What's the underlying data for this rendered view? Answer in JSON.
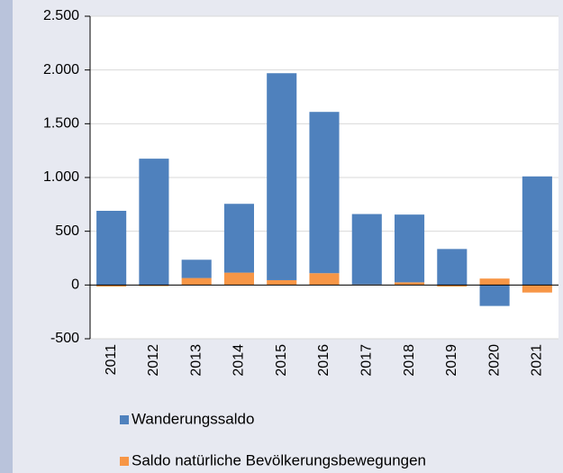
{
  "chart_data": {
    "type": "bar",
    "stacked": true,
    "categories": [
      "2011",
      "2012",
      "2013",
      "2014",
      "2015",
      "2016",
      "2017",
      "2018",
      "2019",
      "2020",
      "2021"
    ],
    "series": [
      {
        "name": "Saldo natürliche Bevölkerungsbewegungen",
        "color": "#f79646",
        "values": [
          -15,
          -10,
          65,
          115,
          45,
          110,
          5,
          25,
          -15,
          60,
          -70
        ]
      },
      {
        "name": "Wanderungssaldo",
        "color": "#4f81bd",
        "values": [
          690,
          1175,
          170,
          640,
          1925,
          1500,
          655,
          630,
          335,
          -195,
          1010
        ]
      }
    ],
    "ylim": [
      -500,
      2500
    ],
    "yticks": [
      {
        "value": -500,
        "label": "-500"
      },
      0,
      500,
      {
        "value": 1000,
        "label": "1.000"
      },
      {
        "value": 1500,
        "label": "1.500"
      },
      {
        "value": 2000,
        "label": "2.000"
      },
      {
        "value": 2500,
        "label": "2.500"
      }
    ],
    "legend_order": [
      1,
      0
    ],
    "grid": true
  }
}
